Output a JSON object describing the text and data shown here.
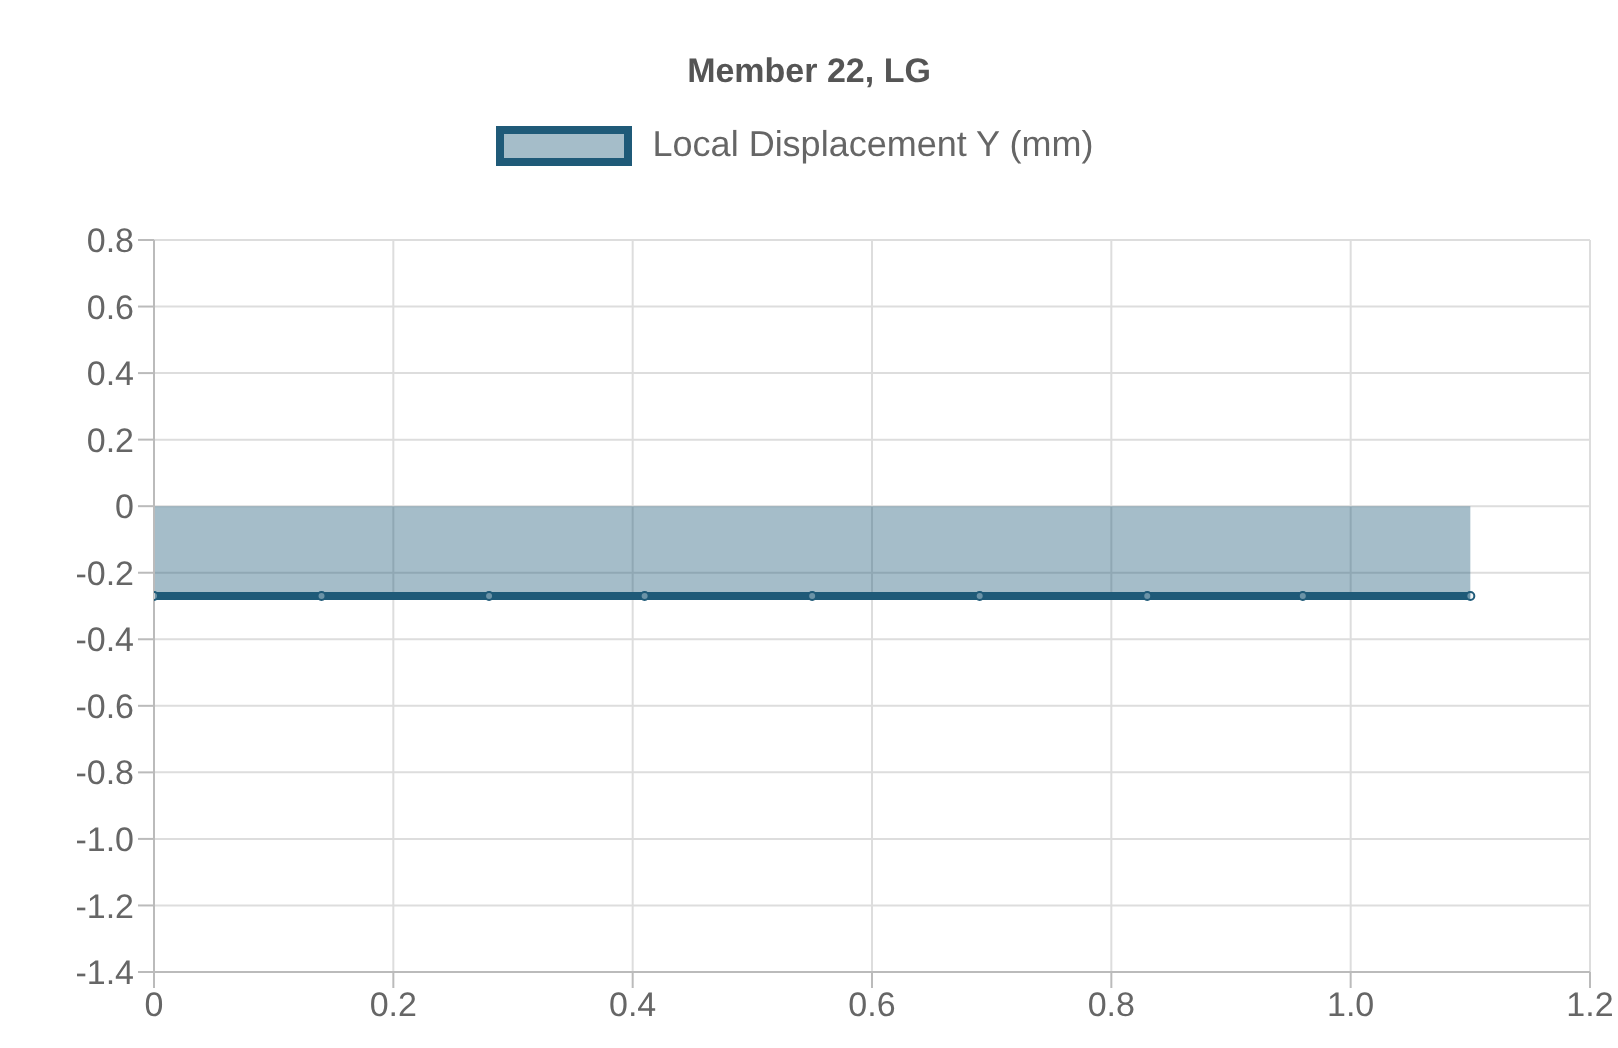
{
  "chart_data": {
    "type": "area",
    "title": "Member 22, LG",
    "x": [
      0,
      0.14,
      0.28,
      0.41,
      0.55,
      0.69,
      0.83,
      0.96,
      1.1
    ],
    "series": [
      {
        "name": "Local Displacement Y (mm)",
        "color": "#1f5a78",
        "values": [
          -0.27,
          -0.27,
          -0.27,
          -0.27,
          -0.27,
          -0.27,
          -0.27,
          -0.27,
          -0.27
        ]
      }
    ],
    "xlim": [
      0,
      1.2
    ],
    "xticks": [
      0,
      0.2,
      0.4,
      0.6,
      0.8,
      {
        "value": 1,
        "label": "1.0"
      },
      1.2
    ],
    "ylim": [
      -1.4,
      0.8
    ],
    "yticks": [
      -1.4,
      -1.2,
      {
        "value": -1,
        "label": "-1.0"
      },
      -0.8,
      -0.6,
      -0.4,
      -0.2,
      0,
      0.2,
      0.4,
      0.6,
      0.8
    ],
    "grid": true,
    "legend": "top",
    "marker": "circle"
  }
}
